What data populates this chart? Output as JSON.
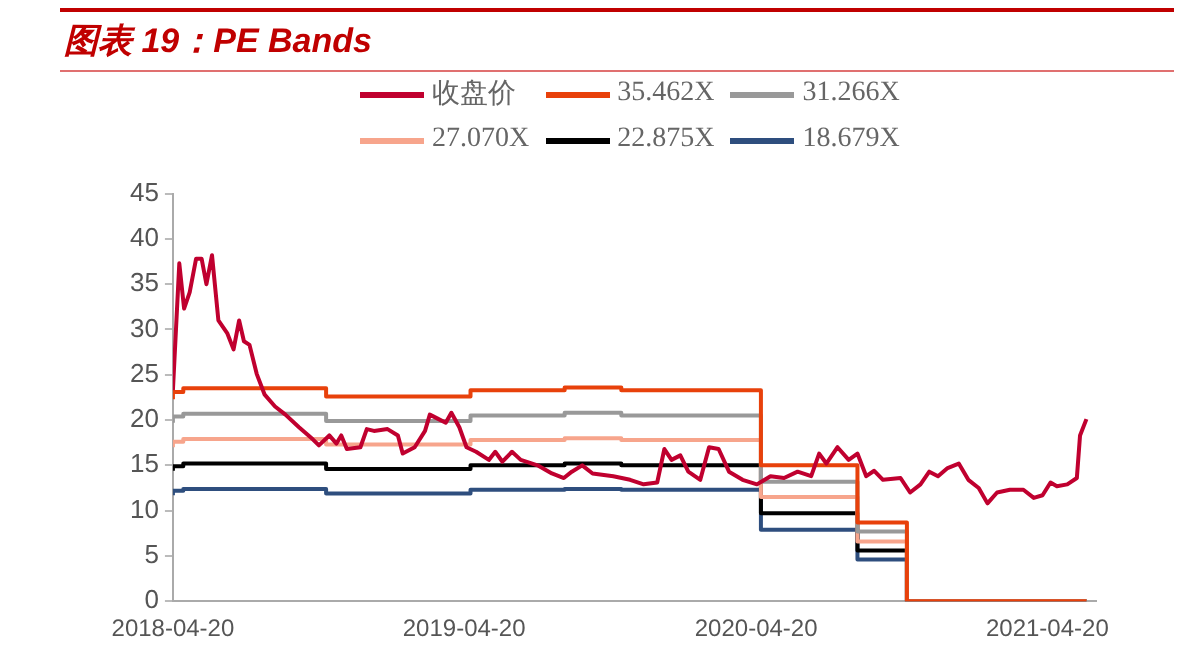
{
  "chart_data": {
    "type": "line",
    "title": "图表 19：PE Bands",
    "xlim": [
      "2018-04-20",
      "2021-06-20"
    ],
    "xticks": [
      "2018-04-20",
      "2019-04-20",
      "2020-04-20",
      "2021-04-20"
    ],
    "ylim": [
      0,
      45
    ],
    "yticks": [
      0,
      5,
      10,
      15,
      20,
      25,
      30,
      35,
      40,
      45
    ],
    "grid": false,
    "legend": "top",
    "marker": "none",
    "series": [
      {
        "name": "收盘价",
        "color": "#c0002f",
        "type": "line",
        "x": [
          "2018-04-20",
          "2018-04-28",
          "2018-05-04",
          "2018-05-11",
          "2018-05-19",
          "2018-05-26",
          "2018-06-01",
          "2018-06-08",
          "2018-06-16",
          "2018-06-27",
          "2018-07-05",
          "2018-07-12",
          "2018-07-18",
          "2018-07-25",
          "2018-08-03",
          "2018-08-13",
          "2018-08-26",
          "2018-09-08",
          "2018-09-25",
          "2018-10-12",
          "2018-10-20",
          "2018-11-02",
          "2018-11-11",
          "2018-11-17",
          "2018-11-24",
          "2018-12-11",
          "2018-12-19",
          "2018-12-28",
          "2019-01-14",
          "2019-01-27",
          "2019-02-02",
          "2019-02-17",
          "2019-03-02",
          "2019-03-08",
          "2019-03-19",
          "2019-03-28",
          "2019-04-04",
          "2019-04-14",
          "2019-04-23",
          "2019-05-05",
          "2019-05-21",
          "2019-05-29",
          "2019-06-07",
          "2019-06-19",
          "2019-06-30",
          "2019-07-21",
          "2019-08-08",
          "2019-08-23",
          "2019-09-02",
          "2019-09-15",
          "2019-09-28",
          "2019-10-24",
          "2019-11-14",
          "2019-12-01",
          "2019-12-18",
          "2019-12-27",
          "2020-01-05",
          "2020-01-16",
          "2020-01-26",
          "2020-02-10",
          "2020-02-21",
          "2020-03-04",
          "2020-03-17",
          "2020-04-03",
          "2020-04-21",
          "2020-05-08",
          "2020-05-25",
          "2020-06-11",
          "2020-06-28",
          "2020-07-08",
          "2020-07-17",
          "2020-07-31",
          "2020-08-14",
          "2020-08-25",
          "2020-09-05",
          "2020-09-15",
          "2020-09-26",
          "2020-10-18",
          "2020-10-30",
          "2020-11-12",
          "2020-11-23",
          "2020-12-04",
          "2020-12-16",
          "2020-12-30",
          "2021-01-11",
          "2021-01-24",
          "2021-02-04",
          "2021-02-16",
          "2021-03-04",
          "2021-03-21",
          "2021-04-03",
          "2021-04-14",
          "2021-04-24",
          "2021-05-02",
          "2021-05-15",
          "2021-05-27",
          "2021-05-31",
          "2021-06-08"
        ],
        "values": [
          23.3,
          37.3,
          32.3,
          34.1,
          37.8,
          37.8,
          35.0,
          38.2,
          31.0,
          29.6,
          27.8,
          31.0,
          28.7,
          28.3,
          25.1,
          22.8,
          21.5,
          20.6,
          19.2,
          17.9,
          17.2,
          18.3,
          17.4,
          18.3,
          16.8,
          17.0,
          19.0,
          18.8,
          19.0,
          18.3,
          16.3,
          17.0,
          18.8,
          20.6,
          20.1,
          19.7,
          20.8,
          19.2,
          17.0,
          16.5,
          15.6,
          16.5,
          15.4,
          16.5,
          15.6,
          15.0,
          14.1,
          13.6,
          14.3,
          15.0,
          14.1,
          13.8,
          13.4,
          12.9,
          13.1,
          16.8,
          15.6,
          16.1,
          14.3,
          13.4,
          17.0,
          16.8,
          14.3,
          13.4,
          12.9,
          13.8,
          13.6,
          14.3,
          13.8,
          16.3,
          15.2,
          17.0,
          15.6,
          16.3,
          13.8,
          14.4,
          13.4,
          13.6,
          12.0,
          12.9,
          14.3,
          13.8,
          14.7,
          15.2,
          13.4,
          12.5,
          10.8,
          12.0,
          12.3,
          12.3,
          11.4,
          11.7,
          13.1,
          12.7,
          12.9,
          13.6,
          18.3,
          20.1
        ]
      },
      {
        "name": "35.462X",
        "color": "#e8410b",
        "type": "step",
        "x": [
          "2018-04-20",
          "2018-05-03",
          "2018-10-29",
          "2019-04-28",
          "2019-08-24",
          "2019-11-03",
          "2020-04-26",
          "2020-08-25",
          "2020-10-26",
          "2021-04-27",
          "2021-06-08"
        ],
        "values": [
          22.3,
          23.1,
          23.5,
          22.6,
          23.3,
          23.6,
          23.3,
          15.0,
          8.7,
          0,
          0
        ]
      },
      {
        "name": "31.266X",
        "color": "#999999",
        "type": "step",
        "x": [
          "2018-04-20",
          "2018-05-03",
          "2018-10-29",
          "2019-04-28",
          "2019-08-24",
          "2019-11-03",
          "2020-04-26",
          "2020-08-25",
          "2020-10-26",
          "2021-04-27",
          "2021-06-08"
        ],
        "values": [
          19.7,
          20.4,
          20.7,
          19.9,
          20.5,
          20.8,
          20.5,
          13.2,
          7.7,
          0,
          0
        ]
      },
      {
        "name": "27.070X",
        "color": "#f7a58c",
        "type": "step",
        "x": [
          "2018-04-20",
          "2018-05-03",
          "2018-10-29",
          "2019-04-28",
          "2019-08-24",
          "2019-11-03",
          "2020-04-26",
          "2020-08-25",
          "2020-10-26",
          "2021-04-27",
          "2021-06-08"
        ],
        "values": [
          17.0,
          17.6,
          17.9,
          17.3,
          17.8,
          18.0,
          17.8,
          11.5,
          6.6,
          0,
          0
        ]
      },
      {
        "name": "22.875X",
        "color": "#000000",
        "type": "step",
        "x": [
          "2018-04-20",
          "2018-05-03",
          "2018-10-29",
          "2019-04-28",
          "2019-08-24",
          "2019-11-03",
          "2020-04-26",
          "2020-08-25",
          "2020-10-26",
          "2021-04-27",
          "2021-06-08"
        ],
        "values": [
          14.4,
          14.9,
          15.2,
          14.6,
          15.0,
          15.2,
          15.0,
          9.7,
          5.6,
          0,
          0
        ]
      },
      {
        "name": "18.679X",
        "color": "#2e4e7e",
        "type": "step",
        "x": [
          "2018-04-20",
          "2018-05-03",
          "2018-10-29",
          "2019-04-28",
          "2019-08-24",
          "2019-11-03",
          "2020-04-26",
          "2020-08-25",
          "2020-10-26",
          "2021-04-27",
          "2021-06-08"
        ],
        "values": [
          11.7,
          12.2,
          12.4,
          11.9,
          12.3,
          12.4,
          12.3,
          7.9,
          4.6,
          0,
          0
        ]
      }
    ]
  }
}
